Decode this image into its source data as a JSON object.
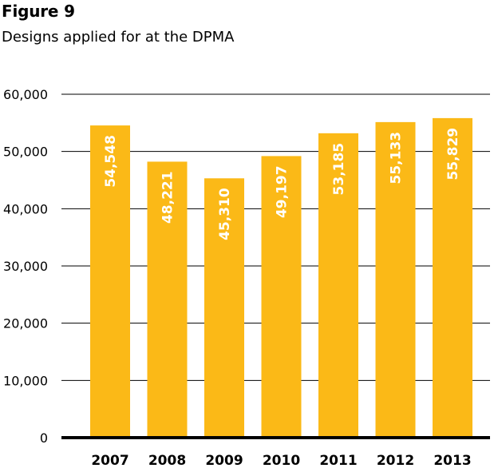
{
  "figure_label": "Figure 9",
  "subtitle": "Designs applied for at the DPMA",
  "chart_data": {
    "type": "bar",
    "title": "Figure 9",
    "subtitle": "Designs applied for at the DPMA",
    "categories": [
      "2007",
      "2008",
      "2009",
      "2010",
      "2011",
      "2012",
      "2013"
    ],
    "values": [
      54548,
      48221,
      45310,
      49197,
      53185,
      55133,
      55829
    ],
    "value_labels": [
      "54,548",
      "48,221",
      "45,310",
      "49,197",
      "53,185",
      "55,133",
      "55,829"
    ],
    "xlabel": "",
    "ylabel": "",
    "ylim": [
      0,
      60000
    ],
    "yticks": [
      0,
      10000,
      20000,
      30000,
      40000,
      50000,
      60000
    ],
    "ytick_labels": [
      "0",
      "10,000",
      "20,000",
      "30,000",
      "40,000",
      "50,000",
      "60,000"
    ],
    "grid": true,
    "legend": "none",
    "bar_color": "#FBB917",
    "value_label_color": "#ffffff"
  }
}
